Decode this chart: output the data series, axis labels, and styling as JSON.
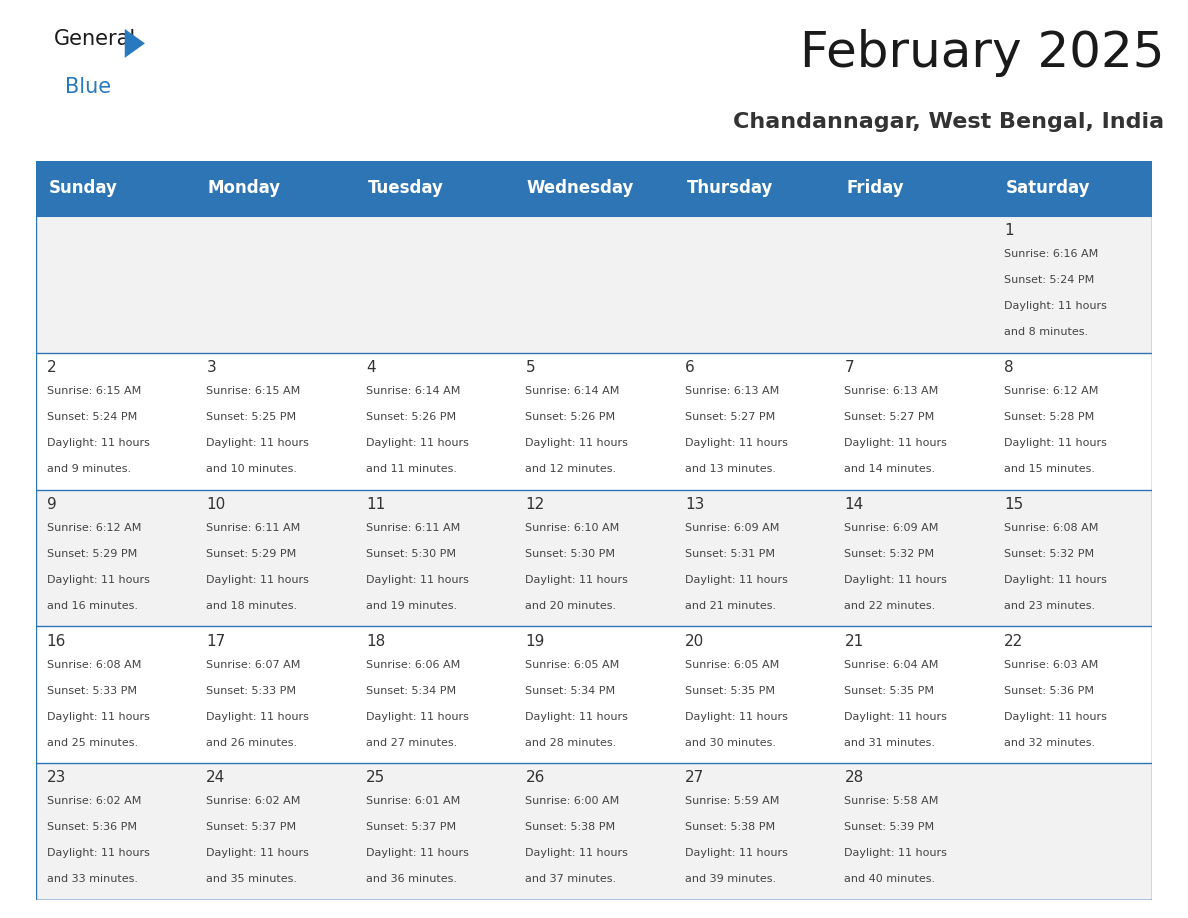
{
  "title": "February 2025",
  "subtitle": "Chandannagar, West Bengal, India",
  "header_bg": "#2E75B6",
  "header_text_color": "#FFFFFF",
  "cell_bg_even": "#F2F2F2",
  "cell_bg_odd": "#FFFFFF",
  "border_color": "#2E75B6",
  "day_headers": [
    "Sunday",
    "Monday",
    "Tuesday",
    "Wednesday",
    "Thursday",
    "Friday",
    "Saturday"
  ],
  "days": [
    {
      "date": 1,
      "col": 6,
      "row": 0,
      "sunrise": "6:16 AM",
      "sunset": "5:24 PM",
      "daylight_hrs": 11,
      "daylight_min": 8
    },
    {
      "date": 2,
      "col": 0,
      "row": 1,
      "sunrise": "6:15 AM",
      "sunset": "5:24 PM",
      "daylight_hrs": 11,
      "daylight_min": 9
    },
    {
      "date": 3,
      "col": 1,
      "row": 1,
      "sunrise": "6:15 AM",
      "sunset": "5:25 PM",
      "daylight_hrs": 11,
      "daylight_min": 10
    },
    {
      "date": 4,
      "col": 2,
      "row": 1,
      "sunrise": "6:14 AM",
      "sunset": "5:26 PM",
      "daylight_hrs": 11,
      "daylight_min": 11
    },
    {
      "date": 5,
      "col": 3,
      "row": 1,
      "sunrise": "6:14 AM",
      "sunset": "5:26 PM",
      "daylight_hrs": 11,
      "daylight_min": 12
    },
    {
      "date": 6,
      "col": 4,
      "row": 1,
      "sunrise": "6:13 AM",
      "sunset": "5:27 PM",
      "daylight_hrs": 11,
      "daylight_min": 13
    },
    {
      "date": 7,
      "col": 5,
      "row": 1,
      "sunrise": "6:13 AM",
      "sunset": "5:27 PM",
      "daylight_hrs": 11,
      "daylight_min": 14
    },
    {
      "date": 8,
      "col": 6,
      "row": 1,
      "sunrise": "6:12 AM",
      "sunset": "5:28 PM",
      "daylight_hrs": 11,
      "daylight_min": 15
    },
    {
      "date": 9,
      "col": 0,
      "row": 2,
      "sunrise": "6:12 AM",
      "sunset": "5:29 PM",
      "daylight_hrs": 11,
      "daylight_min": 16
    },
    {
      "date": 10,
      "col": 1,
      "row": 2,
      "sunrise": "6:11 AM",
      "sunset": "5:29 PM",
      "daylight_hrs": 11,
      "daylight_min": 18
    },
    {
      "date": 11,
      "col": 2,
      "row": 2,
      "sunrise": "6:11 AM",
      "sunset": "5:30 PM",
      "daylight_hrs": 11,
      "daylight_min": 19
    },
    {
      "date": 12,
      "col": 3,
      "row": 2,
      "sunrise": "6:10 AM",
      "sunset": "5:30 PM",
      "daylight_hrs": 11,
      "daylight_min": 20
    },
    {
      "date": 13,
      "col": 4,
      "row": 2,
      "sunrise": "6:09 AM",
      "sunset": "5:31 PM",
      "daylight_hrs": 11,
      "daylight_min": 21
    },
    {
      "date": 14,
      "col": 5,
      "row": 2,
      "sunrise": "6:09 AM",
      "sunset": "5:32 PM",
      "daylight_hrs": 11,
      "daylight_min": 22
    },
    {
      "date": 15,
      "col": 6,
      "row": 2,
      "sunrise": "6:08 AM",
      "sunset": "5:32 PM",
      "daylight_hrs": 11,
      "daylight_min": 23
    },
    {
      "date": 16,
      "col": 0,
      "row": 3,
      "sunrise": "6:08 AM",
      "sunset": "5:33 PM",
      "daylight_hrs": 11,
      "daylight_min": 25
    },
    {
      "date": 17,
      "col": 1,
      "row": 3,
      "sunrise": "6:07 AM",
      "sunset": "5:33 PM",
      "daylight_hrs": 11,
      "daylight_min": 26
    },
    {
      "date": 18,
      "col": 2,
      "row": 3,
      "sunrise": "6:06 AM",
      "sunset": "5:34 PM",
      "daylight_hrs": 11,
      "daylight_min": 27
    },
    {
      "date": 19,
      "col": 3,
      "row": 3,
      "sunrise": "6:05 AM",
      "sunset": "5:34 PM",
      "daylight_hrs": 11,
      "daylight_min": 28
    },
    {
      "date": 20,
      "col": 4,
      "row": 3,
      "sunrise": "6:05 AM",
      "sunset": "5:35 PM",
      "daylight_hrs": 11,
      "daylight_min": 30
    },
    {
      "date": 21,
      "col": 5,
      "row": 3,
      "sunrise": "6:04 AM",
      "sunset": "5:35 PM",
      "daylight_hrs": 11,
      "daylight_min": 31
    },
    {
      "date": 22,
      "col": 6,
      "row": 3,
      "sunrise": "6:03 AM",
      "sunset": "5:36 PM",
      "daylight_hrs": 11,
      "daylight_min": 32
    },
    {
      "date": 23,
      "col": 0,
      "row": 4,
      "sunrise": "6:02 AM",
      "sunset": "5:36 PM",
      "daylight_hrs": 11,
      "daylight_min": 33
    },
    {
      "date": 24,
      "col": 1,
      "row": 4,
      "sunrise": "6:02 AM",
      "sunset": "5:37 PM",
      "daylight_hrs": 11,
      "daylight_min": 35
    },
    {
      "date": 25,
      "col": 2,
      "row": 4,
      "sunrise": "6:01 AM",
      "sunset": "5:37 PM",
      "daylight_hrs": 11,
      "daylight_min": 36
    },
    {
      "date": 26,
      "col": 3,
      "row": 4,
      "sunrise": "6:00 AM",
      "sunset": "5:38 PM",
      "daylight_hrs": 11,
      "daylight_min": 37
    },
    {
      "date": 27,
      "col": 4,
      "row": 4,
      "sunrise": "5:59 AM",
      "sunset": "5:38 PM",
      "daylight_hrs": 11,
      "daylight_min": 39
    },
    {
      "date": 28,
      "col": 5,
      "row": 4,
      "sunrise": "5:58 AM",
      "sunset": "5:39 PM",
      "daylight_hrs": 11,
      "daylight_min": 40
    }
  ],
  "num_rows": 5,
  "num_cols": 7,
  "logo_general_color": "#1a1a1a",
  "logo_blue_color": "#2979BF",
  "logo_triangle_color": "#2979BF",
  "title_fontsize": 36,
  "subtitle_fontsize": 16,
  "header_fontsize": 12,
  "date_fontsize": 11,
  "cell_fontsize": 8
}
